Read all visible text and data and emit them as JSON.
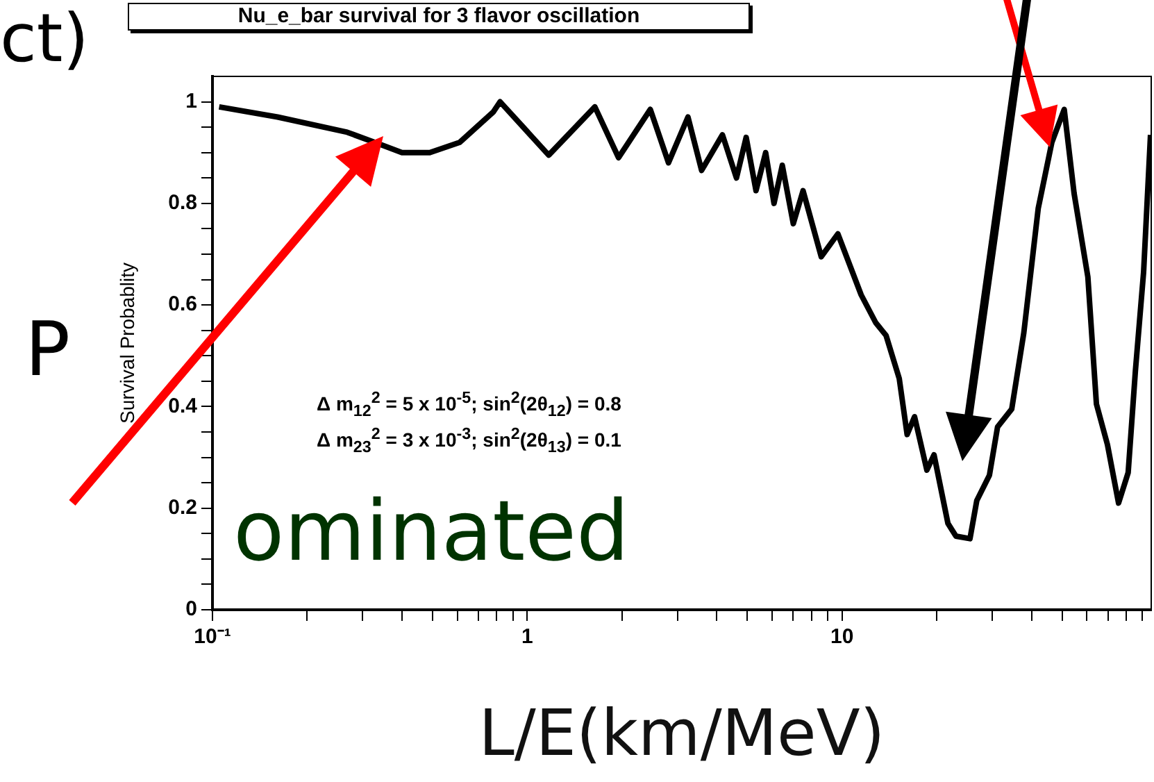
{
  "chart_data": {
    "type": "line",
    "title": "Nu_e_bar survival for 3 flavor oscillation",
    "xlabel": "L/E(km/MeV)",
    "ylabel": "Survival Probablity",
    "annotations": [
      "Δ m$_{12}$$^{2}$ = 5 x 10$^{-5}$; sin$^{2}$(2θ$_{12}$) = 0.8",
      "Δ m$_{23}$$^{2}$ = 3 x 10$^{-3}$; sin$^{2}$(2θ$_{13}$) = 0.1",
      "ct)",
      "P",
      "ominated"
    ],
    "log": "x",
    "grid": false,
    "legend": false,
    "marker": "none",
    "line_style": "solid",
    "xlim": [
      0.1,
      96
    ],
    "xticks": [
      {
        "value": 0.1,
        "label": "10⁻¹"
      },
      {
        "value": 0.2,
        "label": null
      },
      {
        "value": 0.3,
        "label": null
      },
      {
        "value": 0.4,
        "label": null
      },
      {
        "value": 0.5,
        "label": null
      },
      {
        "value": 0.6,
        "label": null
      },
      {
        "value": 0.7,
        "label": null
      },
      {
        "value": 0.8,
        "label": null
      },
      {
        "value": 0.9,
        "label": null
      },
      1,
      {
        "value": 2,
        "label": null
      },
      {
        "value": 3,
        "label": null
      },
      {
        "value": 4,
        "label": null
      },
      {
        "value": 5,
        "label": null
      },
      {
        "value": 6,
        "label": null
      },
      {
        "value": 7,
        "label": null
      },
      {
        "value": 8,
        "label": null
      },
      {
        "value": 9,
        "label": null
      },
      10,
      {
        "value": 20,
        "label": null
      },
      {
        "value": 30,
        "label": null
      },
      {
        "value": 40,
        "label": null
      },
      {
        "value": 50,
        "label": null
      },
      {
        "value": 60,
        "label": null
      },
      {
        "value": 70,
        "label": null
      },
      {
        "value": 80,
        "label": null
      },
      {
        "value": 90,
        "label": null
      }
    ],
    "ylim": [
      0,
      1.05
    ],
    "yticks": [
      0,
      {
        "value": 0.05,
        "label": null
      },
      {
        "value": 0.1,
        "label": null
      },
      {
        "value": 0.15,
        "label": null
      },
      0.2,
      {
        "value": 0.25,
        "label": null
      },
      {
        "value": 0.3,
        "label": null
      },
      {
        "value": 0.35,
        "label": null
      },
      0.4,
      {
        "value": 0.45,
        "label": null
      },
      {
        "value": 0.5,
        "label": null
      },
      {
        "value": 0.55,
        "label": null
      },
      0.6,
      {
        "value": 0.65,
        "label": null
      },
      {
        "value": 0.7,
        "label": null
      },
      {
        "value": 0.75,
        "label": null
      },
      0.8,
      {
        "value": 0.85,
        "label": null
      },
      {
        "value": 0.9,
        "label": null
      },
      {
        "value": 0.95,
        "label": null
      },
      1
    ],
    "series": [
      {
        "color": "#000000",
        "x": [
          0.105,
          0.161,
          0.268,
          0.345,
          0.4,
          0.49,
          0.61,
          0.78,
          0.82,
          1.17,
          1.64,
          1.95,
          2.46,
          2.81,
          3.24,
          3.58,
          4.17,
          4.62,
          4.96,
          5.33,
          5.72,
          6.08,
          6.46,
          7.0,
          7.52,
          8.59,
          9.7,
          11.5,
          12.8,
          13.8,
          15.2,
          16.1,
          17.0,
          18.6,
          19.6,
          21.7,
          23.0,
          25.5,
          26.8,
          29.4,
          31.2,
          34.6,
          37.8,
          42.0,
          46.4,
          50.8,
          54.6,
          60.4,
          64.3,
          69.7,
          75.6,
          81.1,
          85.5,
          90.8,
          95.5
        ],
        "values": [
          0.99,
          0.97,
          0.94,
          0.915,
          0.9,
          0.9,
          0.92,
          0.98,
          1.0,
          0.895,
          0.99,
          0.89,
          0.985,
          0.88,
          0.97,
          0.865,
          0.935,
          0.85,
          0.93,
          0.825,
          0.9,
          0.8,
          0.875,
          0.76,
          0.825,
          0.695,
          0.74,
          0.62,
          0.565,
          0.54,
          0.455,
          0.345,
          0.38,
          0.275,
          0.305,
          0.17,
          0.145,
          0.14,
          0.215,
          0.265,
          0.36,
          0.395,
          0.545,
          0.79,
          0.92,
          0.985,
          0.82,
          0.655,
          0.405,
          0.325,
          0.21,
          0.27,
          0.47,
          0.665,
          0.935
        ]
      }
    ]
  }
}
